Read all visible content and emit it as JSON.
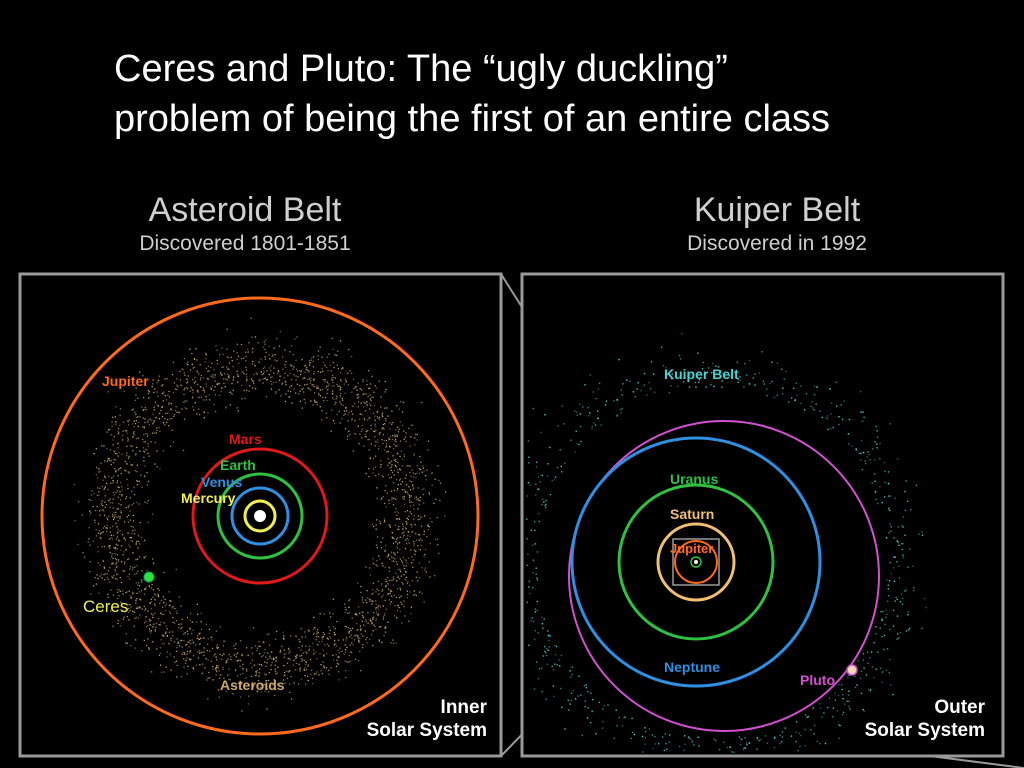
{
  "title": {
    "line1": "Ceres and Pluto: The “ugly duckling”",
    "line2": "problem of being the first of an entire class"
  },
  "left_panel": {
    "heading": "Asteroid Belt",
    "subheading": "Discovered 1801-1851",
    "corner_line1": "Inner",
    "corner_line2": "Solar System",
    "labels": {
      "jupiter": "Jupiter",
      "mars": "Mars",
      "earth": "Earth",
      "venus": "Venus",
      "mercury": "Mercury",
      "ceres": "Ceres",
      "asteroids": "Asteroids"
    },
    "colors": {
      "jupiter": "#ff6a1f",
      "mars": "#e01818",
      "earth": "#30c040",
      "venus": "#2f8fe0",
      "mercury": "#f0f050",
      "ceres": "#30e040",
      "asteroids": "#c9a869"
    }
  },
  "right_panel": {
    "heading": "Kuiper Belt",
    "subheading": "Discovered in 1992",
    "corner_line1": "Outer",
    "corner_line2": "Solar System",
    "labels": {
      "kuiper_belt": "Kuiper Belt",
      "uranus": "Uranus",
      "saturn": "Saturn",
      "jupiter": "Jupiter",
      "neptune": "Neptune",
      "pluto": "Pluto"
    },
    "colors": {
      "kuiper": "#4fd0d0",
      "uranus": "#30c040",
      "saturn": "#f0c070",
      "jupiter": "#ff6a1f",
      "neptune": "#2f8fe0",
      "pluto": "#d050d0"
    }
  }
}
